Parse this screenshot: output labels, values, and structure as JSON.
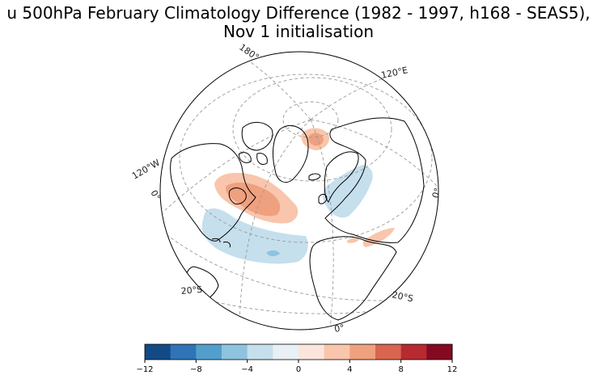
{
  "title": {
    "line1": "u 500hPa February Climatology Difference (1982 - 1997, h168 - SEAS5),",
    "line2": "Nov 1 initialisation"
  },
  "map": {
    "projection": "orthographic",
    "gridline_labels": [
      "180°",
      "120°E",
      "120°W",
      "0°",
      "0°",
      "20°S",
      "20°S",
      "0°"
    ]
  },
  "colorbar": {
    "colors": [
      "#124a87",
      "#2e74b6",
      "#529fcc",
      "#8ec3df",
      "#c5dfed",
      "#e8f0f5",
      "#fbe5dc",
      "#f9c5ac",
      "#efa07f",
      "#d86550",
      "#b72a30",
      "#840a22"
    ],
    "tick_labels": [
      "−12",
      "−8",
      "−4",
      "0",
      "4",
      "8",
      "12"
    ]
  }
}
